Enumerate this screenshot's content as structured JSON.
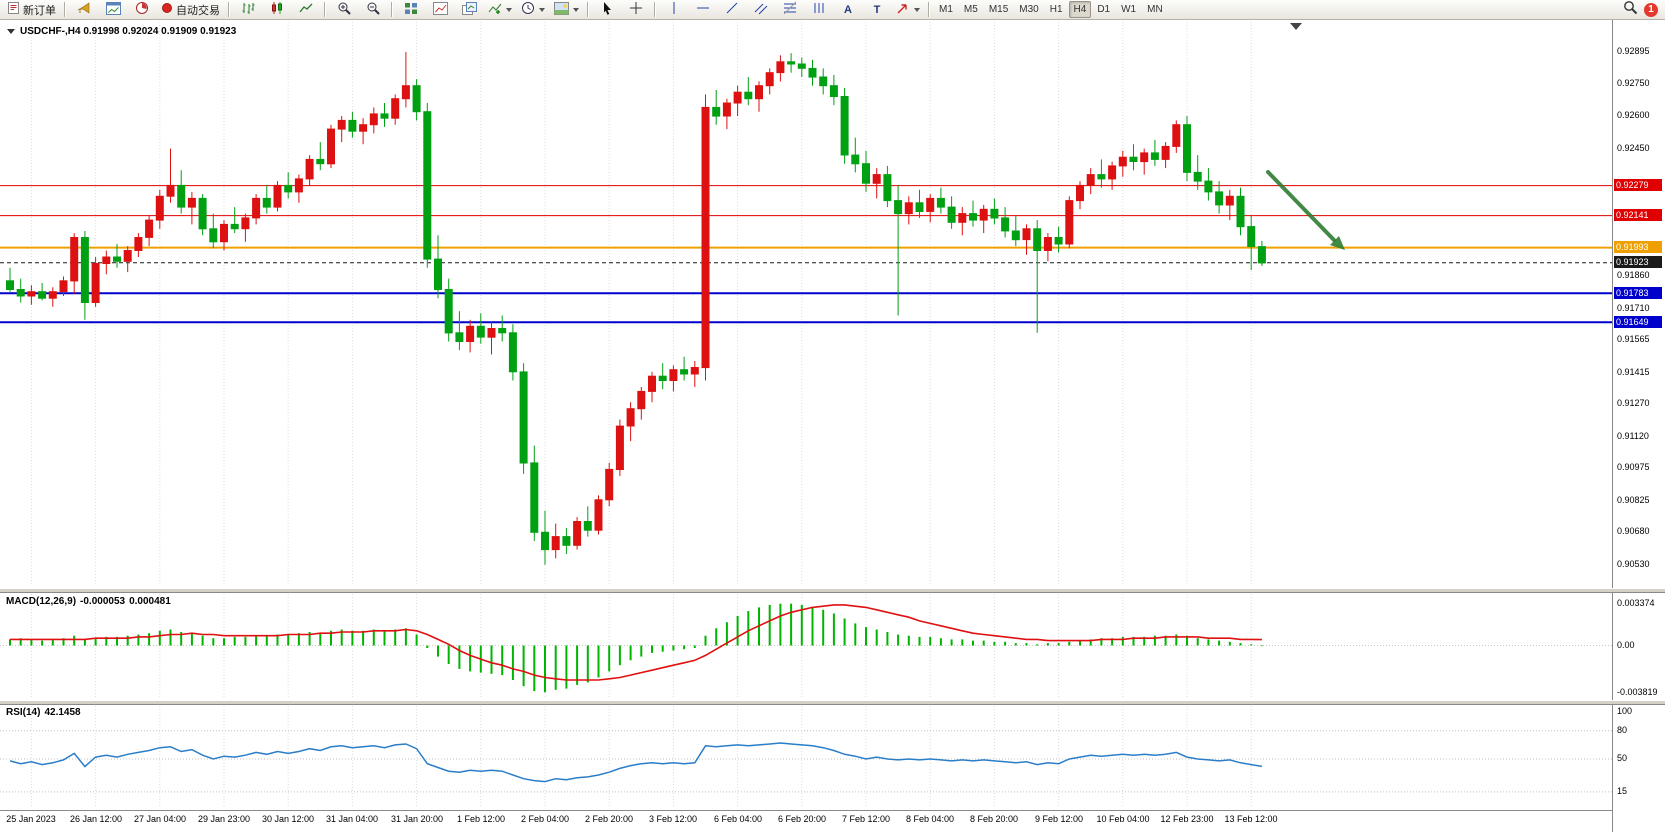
{
  "toolbar": {
    "new_order_label": "新订单",
    "autotrade_label": "自动交易",
    "text_tool_glyph": "A",
    "label_tool_glyph": "T",
    "timeframes": [
      "M1",
      "M5",
      "M15",
      "M30",
      "H1",
      "H4",
      "D1",
      "W1",
      "MN"
    ],
    "active_timeframe": "H4",
    "notification_count": "1"
  },
  "chart": {
    "symbol_header": "USDCHF-,H4  0.91998 0.92024 0.91909 0.91923",
    "price_axis_labels": [
      "0.92895",
      "0.92750",
      "0.92600",
      "0.92450",
      "0.91860",
      "0.91710",
      "0.91565",
      "0.91415",
      "0.91270",
      "0.91120",
      "0.90975",
      "0.90825",
      "0.90680",
      "0.90530"
    ],
    "price_lines": [
      {
        "price": 0.92279,
        "label": "0.92279",
        "color": "#e00000",
        "width": 1,
        "style": "solid"
      },
      {
        "price": 0.92141,
        "label": "0.92141",
        "color": "#e00000",
        "width": 1,
        "style": "solid"
      },
      {
        "price": 0.91993,
        "label": "0.91993",
        "color": "#efa000",
        "width": 2,
        "style": "solid"
      },
      {
        "price": 0.91923,
        "label": "0.91923",
        "color": "#1a1a1a",
        "width": 1,
        "style": "dashed"
      },
      {
        "price": 0.91783,
        "label": "0.91783",
        "color": "#0000cc",
        "width": 2,
        "style": "solid"
      },
      {
        "price": 0.91649,
        "label": "0.91649",
        "color": "#0000cc",
        "width": 2,
        "style": "solid"
      }
    ],
    "time_axis_labels": [
      "25 Jan 2023",
      "26 Jan 12:00",
      "27 Jan 04:00",
      "29 Jan 23:00",
      "30 Jan 12:00",
      "31 Jan 04:00",
      "31 Jan 20:00",
      "1 Feb 12:00",
      "2 Feb 04:00",
      "2 Feb 20:00",
      "3 Feb 12:00",
      "6 Feb 04:00",
      "6 Feb 20:00",
      "7 Feb 12:00",
      "8 Feb 04:00",
      "8 Feb 20:00",
      "9 Feb 12:00",
      "10 Feb 04:00",
      "12 Feb 23:00",
      "13 Feb 12:00"
    ],
    "arrow_color": "#2e7d32"
  },
  "chart_data": {
    "type": "candlestick",
    "symbol": "USDCHF-",
    "timeframe": "H4",
    "open": 0.91998,
    "high": 0.92024,
    "low": 0.91909,
    "close": 0.91923,
    "bull_color": "#dd1111",
    "bear_color": "#00a013",
    "ohlc": [
      [
        0.9184,
        0.919,
        0.9179,
        0.918
      ],
      [
        0.918,
        0.9185,
        0.9174,
        0.9177
      ],
      [
        0.9177,
        0.9182,
        0.9173,
        0.9179
      ],
      [
        0.9179,
        0.9183,
        0.9175,
        0.9176
      ],
      [
        0.9176,
        0.9181,
        0.9172,
        0.9179
      ],
      [
        0.9179,
        0.9186,
        0.9177,
        0.9184
      ],
      [
        0.9184,
        0.9206,
        0.9178,
        0.9204
      ],
      [
        0.9204,
        0.9207,
        0.9166,
        0.9174
      ],
      [
        0.9174,
        0.9195,
        0.9172,
        0.9192
      ],
      [
        0.9192,
        0.9198,
        0.9187,
        0.9195
      ],
      [
        0.9195,
        0.9201,
        0.919,
        0.9193
      ],
      [
        0.9193,
        0.92,
        0.9188,
        0.9198
      ],
      [
        0.9198,
        0.9206,
        0.9195,
        0.9204
      ],
      [
        0.9204,
        0.9214,
        0.92,
        0.9212
      ],
      [
        0.9212,
        0.9226,
        0.9208,
        0.9223
      ],
      [
        0.9223,
        0.9245,
        0.922,
        0.9228
      ],
      [
        0.9228,
        0.9235,
        0.9215,
        0.9218
      ],
      [
        0.9218,
        0.9225,
        0.921,
        0.9222
      ],
      [
        0.9222,
        0.9224,
        0.9205,
        0.9208
      ],
      [
        0.9208,
        0.9215,
        0.9199,
        0.9202
      ],
      [
        0.9202,
        0.9212,
        0.9198,
        0.921
      ],
      [
        0.921,
        0.9218,
        0.9206,
        0.9208
      ],
      [
        0.9208,
        0.9215,
        0.9202,
        0.9213
      ],
      [
        0.9213,
        0.9224,
        0.921,
        0.9222
      ],
      [
        0.9222,
        0.9228,
        0.9215,
        0.9218
      ],
      [
        0.9218,
        0.923,
        0.9216,
        0.9228
      ],
      [
        0.9228,
        0.9234,
        0.9222,
        0.9225
      ],
      [
        0.9225,
        0.9233,
        0.922,
        0.9231
      ],
      [
        0.9231,
        0.9242,
        0.9228,
        0.924
      ],
      [
        0.924,
        0.9248,
        0.9235,
        0.9238
      ],
      [
        0.9238,
        0.9256,
        0.9236,
        0.9254
      ],
      [
        0.9254,
        0.926,
        0.9248,
        0.9258
      ],
      [
        0.9258,
        0.9262,
        0.925,
        0.9253
      ],
      [
        0.9253,
        0.9259,
        0.9247,
        0.9256
      ],
      [
        0.9256,
        0.9264,
        0.9252,
        0.9261
      ],
      [
        0.9261,
        0.9266,
        0.9255,
        0.9259
      ],
      [
        0.9259,
        0.927,
        0.9256,
        0.9268
      ],
      [
        0.9268,
        0.92895,
        0.9264,
        0.9274
      ],
      [
        0.9274,
        0.9277,
        0.9258,
        0.9262
      ],
      [
        0.9262,
        0.9266,
        0.919,
        0.9194
      ],
      [
        0.9194,
        0.9205,
        0.9176,
        0.918
      ],
      [
        0.918,
        0.9185,
        0.9156,
        0.916
      ],
      [
        0.916,
        0.917,
        0.9152,
        0.9156
      ],
      [
        0.9156,
        0.9166,
        0.9151,
        0.9163
      ],
      [
        0.9163,
        0.9169,
        0.9155,
        0.9158
      ],
      [
        0.9158,
        0.9165,
        0.915,
        0.9162
      ],
      [
        0.9162,
        0.9168,
        0.9156,
        0.916
      ],
      [
        0.916,
        0.9164,
        0.9138,
        0.9142
      ],
      [
        0.9142,
        0.9146,
        0.9095,
        0.91
      ],
      [
        0.91,
        0.9108,
        0.9064,
        0.9068
      ],
      [
        0.9068,
        0.9078,
        0.9053,
        0.906
      ],
      [
        0.906,
        0.9072,
        0.9056,
        0.9066
      ],
      [
        0.9066,
        0.907,
        0.9058,
        0.9062
      ],
      [
        0.9062,
        0.9075,
        0.906,
        0.9073
      ],
      [
        0.9073,
        0.908,
        0.9066,
        0.9069
      ],
      [
        0.9069,
        0.9085,
        0.9067,
        0.9083
      ],
      [
        0.9083,
        0.91,
        0.908,
        0.9097
      ],
      [
        0.9097,
        0.912,
        0.9094,
        0.9117
      ],
      [
        0.9117,
        0.9128,
        0.911,
        0.9125
      ],
      [
        0.9125,
        0.9135,
        0.912,
        0.9133
      ],
      [
        0.9133,
        0.9142,
        0.9128,
        0.914
      ],
      [
        0.914,
        0.9146,
        0.9134,
        0.9138
      ],
      [
        0.9138,
        0.9145,
        0.9133,
        0.9143
      ],
      [
        0.9143,
        0.9149,
        0.9138,
        0.9141
      ],
      [
        0.9141,
        0.9147,
        0.9135,
        0.9144
      ],
      [
        0.9144,
        0.927,
        0.9138,
        0.9264
      ],
      [
        0.9264,
        0.9272,
        0.9256,
        0.926
      ],
      [
        0.926,
        0.9268,
        0.9254,
        0.9266
      ],
      [
        0.9266,
        0.9274,
        0.926,
        0.9271
      ],
      [
        0.9271,
        0.9278,
        0.9265,
        0.9268
      ],
      [
        0.9268,
        0.9276,
        0.9262,
        0.9274
      ],
      [
        0.9274,
        0.9282,
        0.927,
        0.928
      ],
      [
        0.928,
        0.9288,
        0.9276,
        0.9285
      ],
      [
        0.9285,
        0.9289,
        0.928,
        0.9284
      ],
      [
        0.9284,
        0.9287,
        0.9278,
        0.9282
      ],
      [
        0.9282,
        0.9286,
        0.9274,
        0.9278
      ],
      [
        0.9278,
        0.9282,
        0.927,
        0.9274
      ],
      [
        0.9274,
        0.9279,
        0.9265,
        0.9269
      ],
      [
        0.9269,
        0.9273,
        0.9238,
        0.9242
      ],
      [
        0.9242,
        0.925,
        0.9234,
        0.9238
      ],
      [
        0.9238,
        0.9244,
        0.9225,
        0.9229
      ],
      [
        0.9229,
        0.9236,
        0.9222,
        0.9233
      ],
      [
        0.9233,
        0.9237,
        0.9218,
        0.9221
      ],
      [
        0.9221,
        0.9228,
        0.9168,
        0.9215
      ],
      [
        0.9215,
        0.9223,
        0.921,
        0.922
      ],
      [
        0.922,
        0.9226,
        0.9213,
        0.9216
      ],
      [
        0.9216,
        0.9224,
        0.9211,
        0.9222
      ],
      [
        0.9222,
        0.9227,
        0.9215,
        0.9218
      ],
      [
        0.9218,
        0.9223,
        0.9208,
        0.9211
      ],
      [
        0.9211,
        0.9218,
        0.9205,
        0.9215
      ],
      [
        0.9215,
        0.9221,
        0.9209,
        0.9212
      ],
      [
        0.9212,
        0.9219,
        0.9206,
        0.9217
      ],
      [
        0.9217,
        0.9222,
        0.921,
        0.9213
      ],
      [
        0.9213,
        0.9218,
        0.9204,
        0.9207
      ],
      [
        0.9207,
        0.9214,
        0.92,
        0.9203
      ],
      [
        0.9203,
        0.921,
        0.9196,
        0.9208
      ],
      [
        0.9208,
        0.9212,
        0.916,
        0.9198
      ],
      [
        0.9198,
        0.9206,
        0.9193,
        0.9204
      ],
      [
        0.9204,
        0.9209,
        0.9197,
        0.9201
      ],
      [
        0.9201,
        0.9223,
        0.9199,
        0.9221
      ],
      [
        0.9221,
        0.923,
        0.9217,
        0.9228
      ],
      [
        0.9228,
        0.9236,
        0.9224,
        0.9233
      ],
      [
        0.9233,
        0.924,
        0.9227,
        0.9231
      ],
      [
        0.9231,
        0.9239,
        0.9226,
        0.9237
      ],
      [
        0.9237,
        0.9244,
        0.9232,
        0.9241
      ],
      [
        0.9241,
        0.9247,
        0.9235,
        0.9239
      ],
      [
        0.9239,
        0.9245,
        0.9233,
        0.9243
      ],
      [
        0.9243,
        0.9249,
        0.9237,
        0.924
      ],
      [
        0.924,
        0.9248,
        0.9236,
        0.9246
      ],
      [
        0.9246,
        0.9258,
        0.9243,
        0.9256
      ],
      [
        0.9256,
        0.926,
        0.923,
        0.9234
      ],
      [
        0.9234,
        0.9242,
        0.9226,
        0.923
      ],
      [
        0.923,
        0.9236,
        0.9221,
        0.9225
      ],
      [
        0.9225,
        0.923,
        0.9215,
        0.9219
      ],
      [
        0.9219,
        0.9226,
        0.9212,
        0.9223
      ],
      [
        0.9223,
        0.9227,
        0.9205,
        0.9209
      ],
      [
        0.9209,
        0.9214,
        0.9189,
        0.91998
      ],
      [
        0.91998,
        0.92024,
        0.91909,
        0.91923
      ]
    ],
    "macd": {
      "name": "MACD(12,26,9)",
      "value_main": "-0.000053",
      "value_signal": "0.000481",
      "axis_labels": [
        "0.003374",
        "0.00",
        "-0.003819"
      ],
      "histogram_color": "#00b400",
      "signal_color": "#e01010",
      "histogram": [
        0.0005,
        0.0006,
        0.0005,
        0.0004,
        0.0005,
        0.0006,
        0.0008,
        0.0005,
        0.0006,
        0.0007,
        0.0007,
        0.0008,
        0.0009,
        0.001,
        0.0012,
        0.0013,
        0.0011,
        0.001,
        0.0008,
        0.0006,
        0.0006,
        0.0007,
        0.0007,
        0.0008,
        0.0008,
        0.0009,
        0.0009,
        0.001,
        0.0011,
        0.001,
        0.0012,
        0.0013,
        0.0012,
        0.0012,
        0.0013,
        0.0012,
        0.0013,
        0.0014,
        0.0009,
        -0.0002,
        -0.0009,
        -0.0015,
        -0.0019,
        -0.0021,
        -0.0022,
        -0.0023,
        -0.0024,
        -0.0028,
        -0.0033,
        -0.0037,
        -0.0038,
        -0.0036,
        -0.0035,
        -0.0032,
        -0.003,
        -0.0026,
        -0.0021,
        -0.0016,
        -0.0012,
        -0.0009,
        -0.0006,
        -0.0005,
        -0.0004,
        -0.0003,
        -0.0002,
        0.0008,
        0.0014,
        0.0019,
        0.0024,
        0.0028,
        0.0031,
        0.0033,
        0.0034,
        0.0034,
        0.0033,
        0.0031,
        0.0029,
        0.0026,
        0.0022,
        0.0018,
        0.0015,
        0.0013,
        0.0011,
        0.0009,
        0.0008,
        0.0007,
        0.0007,
        0.0006,
        0.0005,
        0.0005,
        0.0004,
        0.0004,
        0.0003,
        0.0003,
        0.0002,
        0.0002,
        0.0001,
        0.0002,
        0.0002,
        0.0003,
        0.0004,
        0.0005,
        0.0006,
        0.0006,
        0.0007,
        0.0007,
        0.0007,
        0.0008,
        0.0008,
        0.0009,
        0.0008,
        0.0006,
        0.0005,
        0.0004,
        0.0003,
        0.0002,
        0.0001,
        -5.3e-05
      ],
      "signal": [
        0.0005,
        0.0005,
        0.0005,
        0.0005,
        0.0005,
        0.0005,
        0.0005,
        0.0005,
        0.0006,
        0.0006,
        0.0006,
        0.0006,
        0.0007,
        0.0007,
        0.0008,
        0.0009,
        0.0009,
        0.001,
        0.0009,
        0.0009,
        0.0008,
        0.0008,
        0.0008,
        0.0008,
        0.0008,
        0.0008,
        0.0009,
        0.0009,
        0.0009,
        0.001,
        0.001,
        0.0011,
        0.0011,
        0.0011,
        0.0012,
        0.0012,
        0.0012,
        0.0013,
        0.0012,
        0.0009,
        0.0005,
        0.0001,
        -0.0004,
        -0.0008,
        -0.0011,
        -0.0014,
        -0.0016,
        -0.0019,
        -0.0021,
        -0.0024,
        -0.0026,
        -0.0027,
        -0.0028,
        -0.0028,
        -0.0028,
        -0.0028,
        -0.0027,
        -0.0026,
        -0.0024,
        -0.0022,
        -0.002,
        -0.0018,
        -0.0016,
        -0.0014,
        -0.0012,
        -0.0008,
        -0.0003,
        0.0002,
        0.0007,
        0.0012,
        0.0016,
        0.002,
        0.0024,
        0.0027,
        0.0029,
        0.0031,
        0.0032,
        0.0033,
        0.0033,
        0.0032,
        0.0031,
        0.0029,
        0.0027,
        0.0025,
        0.0023,
        0.002,
        0.0018,
        0.0016,
        0.0014,
        0.0012,
        0.001,
        0.0009,
        0.0008,
        0.0007,
        0.0006,
        0.0005,
        0.0005,
        0.0004,
        0.0004,
        0.0004,
        0.0004,
        0.0004,
        0.0005,
        0.0005,
        0.0005,
        0.0006,
        0.0006,
        0.0006,
        0.0007,
        0.0007,
        0.0007,
        0.0007,
        0.0006,
        0.0006,
        0.0006,
        0.0005,
        0.0005,
        0.000481
      ]
    },
    "rsi": {
      "name": "RSI(14)",
      "value": "42.1458",
      "axis_labels": [
        "100",
        "80",
        "50",
        "15"
      ],
      "levels": [
        80,
        50,
        15
      ],
      "line_color": "#2a7ec8",
      "values": [
        48,
        45,
        47,
        44,
        46,
        49,
        56,
        42,
        52,
        54,
        52,
        55,
        57,
        59,
        62,
        63,
        58,
        60,
        54,
        50,
        53,
        52,
        54,
        57,
        55,
        58,
        56,
        58,
        61,
        59,
        63,
        64,
        62,
        63,
        64,
        62,
        65,
        66,
        61,
        45,
        41,
        37,
        36,
        38,
        37,
        38,
        37,
        33,
        29,
        27,
        26,
        29,
        28,
        30,
        31,
        33,
        36,
        40,
        43,
        45,
        46,
        45,
        46,
        45,
        46,
        64,
        63,
        64,
        65,
        64,
        65,
        66,
        67,
        66,
        65,
        64,
        62,
        59,
        55,
        53,
        50,
        52,
        50,
        49,
        50,
        49,
        50,
        49,
        48,
        49,
        48,
        49,
        48,
        47,
        46,
        47,
        44,
        46,
        45,
        50,
        52,
        54,
        53,
        54,
        55,
        54,
        55,
        54,
        55,
        57,
        52,
        50,
        49,
        48,
        49,
        46,
        44,
        42.1458
      ]
    }
  }
}
